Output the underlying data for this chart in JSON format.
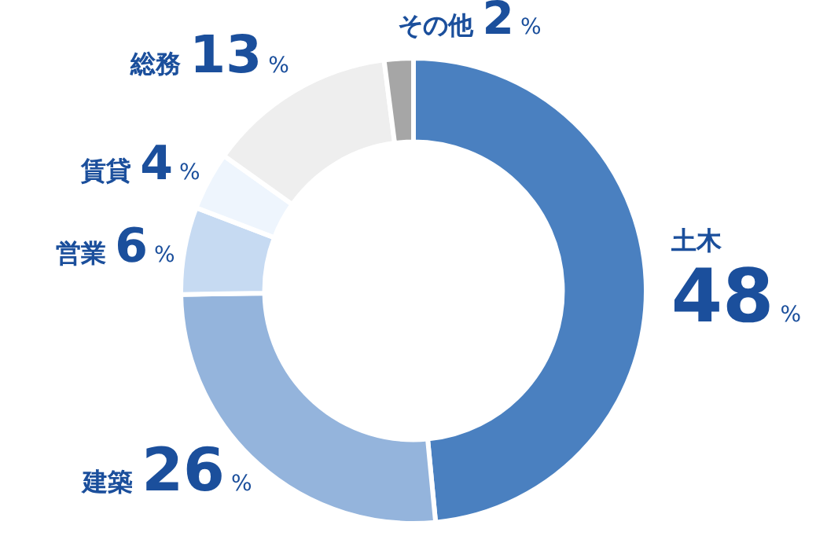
{
  "chart_data": {
    "type": "donut",
    "categories": [
      "土木",
      "建築",
      "営業",
      "賃貸",
      "総務",
      "その他"
    ],
    "values": [
      48,
      26,
      6,
      4,
      13,
      2
    ],
    "colors": [
      "#4a80c0",
      "#94b4dc",
      "#c6daf2",
      "#eef5fd",
      "#eeeeee",
      "#a6a6a6"
    ],
    "value_labels": [
      "48%",
      "26%",
      "6%",
      "4%",
      "13%",
      "2%"
    ]
  }
}
